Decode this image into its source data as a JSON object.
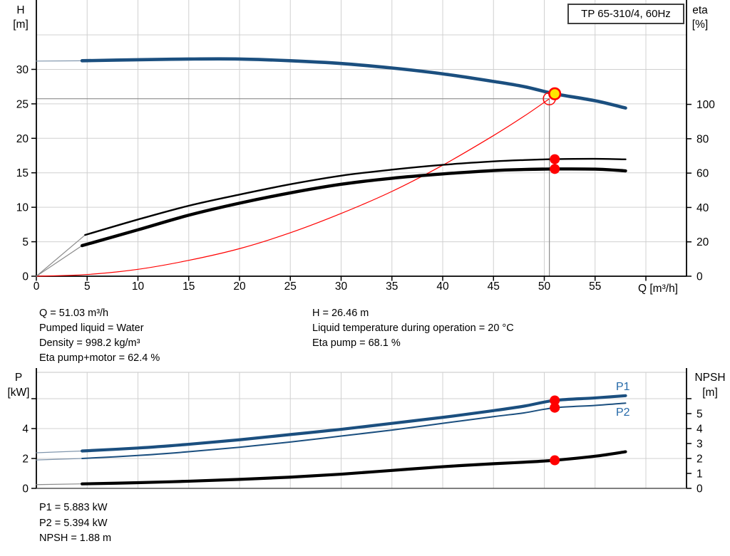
{
  "pump_model": "TP 65-310/4, 60Hz",
  "readout_top_left": [
    "Q = 51.03 m³/h",
    "Pumped liquid = Water",
    "Density = 998.2 kg/m³",
    "Eta pump+motor = 62.4 %"
  ],
  "readout_top_right": [
    "H = 26.46 m",
    "Liquid temperature during operation = 20 °C",
    "Eta pump = 68.1 %"
  ],
  "readout_bottom": [
    "P1 = 5.883 kW",
    "P2 = 5.394 kW",
    "NPSH = 1.88 m"
  ],
  "colors": {
    "curve_blue": "#1B4F7F",
    "blue_lead": "#8096AD",
    "label_blue": "#2569A8",
    "curve_black": "#000000",
    "lead_gray": "#8A8A8A",
    "red": "#FF0000",
    "yellow": "#FFE600",
    "grid": "#D0D0D0",
    "axis": "#000000",
    "duty_line": "#8C8C8C"
  },
  "chart_data": [
    {
      "type": "line",
      "title": "Pump head and efficiency vs flow",
      "x_axis": {
        "label": "Q [m³/h]",
        "min": 0,
        "max": 64,
        "ticks": [
          0,
          5,
          10,
          15,
          20,
          25,
          30,
          35,
          40,
          45,
          50,
          55,
          60
        ],
        "tick_labels": [
          "0",
          "5",
          "10",
          "15",
          "20",
          "25",
          "30",
          "35",
          "40",
          "45",
          "50",
          "55",
          ""
        ]
      },
      "y_left": {
        "label_lines": [
          "H",
          "[m]"
        ],
        "min": 0,
        "max": 40,
        "ticks": [
          0,
          5,
          10,
          15,
          20,
          25,
          30
        ],
        "grid_values": [
          5,
          10,
          15,
          20,
          25,
          30,
          35
        ]
      },
      "y_right": {
        "label_lines": [
          "eta",
          "[%]"
        ],
        "min": 0,
        "max": 100,
        "ticks": [
          0,
          20,
          40,
          60,
          80,
          100
        ]
      },
      "series": [
        {
          "id": "system-curve",
          "name": "System curve",
          "axis": "left",
          "color": "red",
          "width": 1.2,
          "points": [
            [
              0,
              0
            ],
            [
              5,
              0.25
            ],
            [
              10,
              1.0
            ],
            [
              15,
              2.3
            ],
            [
              20,
              4.0
            ],
            [
              25,
              6.3
            ],
            [
              30,
              9.1
            ],
            [
              35,
              12.3
            ],
            [
              40,
              16.1
            ],
            [
              45,
              20.4
            ],
            [
              48,
              23.2
            ],
            [
              50.5,
              25.74
            ]
          ]
        },
        {
          "id": "eta-pump-curve",
          "name": "Eta pump",
          "axis": "right",
          "color": "curve_black",
          "width": 2.4,
          "lead_color": "lead_gray",
          "lead": [
            [
              0,
              0
            ],
            [
              4.8,
              24
            ]
          ],
          "points": [
            [
              4.8,
              24
            ],
            [
              10,
              33
            ],
            [
              15,
              41
            ],
            [
              20,
              47.5
            ],
            [
              25,
              53.5
            ],
            [
              30,
              58.5
            ],
            [
              35,
              62
            ],
            [
              40,
              64.8
            ],
            [
              45,
              66.8
            ],
            [
              48,
              67.6
            ],
            [
              51.03,
              68.1
            ],
            [
              55,
              68.3
            ],
            [
              58,
              68
            ]
          ]
        },
        {
          "id": "eta-pump-motor-curve",
          "name": "Eta pump+motor",
          "axis": "right",
          "color": "curve_black",
          "width": 4.4,
          "lead_color": "lead_gray",
          "lead": [
            [
              0,
              0
            ],
            [
              4.5,
              17.8
            ]
          ],
          "points": [
            [
              4.5,
              17.8
            ],
            [
              10,
              27
            ],
            [
              15,
              35.5
            ],
            [
              20,
              42.5
            ],
            [
              25,
              48.5
            ],
            [
              30,
              53.5
            ],
            [
              35,
              57
            ],
            [
              40,
              59.5
            ],
            [
              45,
              61.5
            ],
            [
              48,
              62.1
            ],
            [
              51.03,
              62.4
            ],
            [
              55,
              62.3
            ],
            [
              58,
              61.3
            ]
          ]
        },
        {
          "id": "h-curve",
          "name": "H",
          "axis": "left",
          "color": "curve_blue",
          "width": 4.6,
          "lead_color": "blue_lead",
          "lead": [
            [
              0,
              31.2
            ],
            [
              4.5,
              31.25
            ]
          ],
          "points": [
            [
              4.5,
              31.25
            ],
            [
              10,
              31.4
            ],
            [
              15,
              31.5
            ],
            [
              20,
              31.5
            ],
            [
              25,
              31.25
            ],
            [
              30,
              30.85
            ],
            [
              35,
              30.2
            ],
            [
              40,
              29.35
            ],
            [
              45,
              28.25
            ],
            [
              48,
              27.5
            ],
            [
              51.03,
              26.46
            ],
            [
              55,
              25.45
            ],
            [
              58,
              24.4
            ]
          ]
        }
      ],
      "markers": {
        "requested_duty_point": {
          "q": 50.5,
          "h": 25.74
        },
        "operating_point": {
          "q": 51.03,
          "h": 26.46
        },
        "eta_points": [
          {
            "q": 51.03,
            "eta": 68.1
          },
          {
            "q": 51.03,
            "eta": 62.4
          }
        ]
      }
    },
    {
      "type": "line",
      "title": "Power and NPSH vs flow",
      "x_axis": {
        "label": "",
        "min": 0,
        "max": 64,
        "ticks": [
          5,
          10,
          15,
          20,
          25,
          30,
          35,
          40,
          45,
          50,
          55,
          60
        ],
        "tick_labels": []
      },
      "y_left": {
        "label_lines": [
          "P",
          "[kW]"
        ],
        "min": 0,
        "max": 7.8,
        "ticks": [
          0,
          2,
          4,
          6
        ],
        "tick_labels": [
          "0",
          "2",
          "4",
          ""
        ],
        "grid_values": [
          2,
          4,
          6
        ]
      },
      "y_right": {
        "label_lines": [
          "NPSH",
          "[m]"
        ],
        "min": 0,
        "max": 7.8,
        "ticks": [
          0,
          1,
          2,
          3,
          4,
          5,
          6
        ],
        "tick_labels": [
          "0",
          "1",
          "2",
          "3",
          "4",
          "5",
          ""
        ]
      },
      "series": [
        {
          "id": "p1-curve",
          "name": "P1",
          "label": "P1",
          "axis": "left",
          "color": "curve_blue",
          "width": 4.2,
          "lead_color": "blue_lead",
          "lead": [
            [
              0,
              2.38
            ],
            [
              4.5,
              2.5
            ]
          ],
          "points": [
            [
              4.5,
              2.5
            ],
            [
              10,
              2.7
            ],
            [
              15,
              2.95
            ],
            [
              20,
              3.25
            ],
            [
              25,
              3.6
            ],
            [
              30,
              3.95
            ],
            [
              35,
              4.35
            ],
            [
              40,
              4.75
            ],
            [
              45,
              5.2
            ],
            [
              48,
              5.5
            ],
            [
              51.03,
              5.883
            ],
            [
              55,
              6.05
            ],
            [
              58,
              6.2
            ]
          ]
        },
        {
          "id": "p2-curve",
          "name": "P2",
          "label": "P2",
          "axis": "left",
          "color": "curve_blue",
          "width": 2.0,
          "lead_color": "blue_lead",
          "lead": [
            [
              0,
              1.9
            ],
            [
              4.5,
              2.0
            ]
          ],
          "points": [
            [
              4.5,
              2.0
            ],
            [
              10,
              2.2
            ],
            [
              15,
              2.45
            ],
            [
              20,
              2.75
            ],
            [
              25,
              3.1
            ],
            [
              30,
              3.5
            ],
            [
              35,
              3.9
            ],
            [
              40,
              4.35
            ],
            [
              45,
              4.8
            ],
            [
              48,
              5.05
            ],
            [
              51.03,
              5.394
            ],
            [
              55,
              5.55
            ],
            [
              58,
              5.7
            ]
          ]
        },
        {
          "id": "npsh-curve",
          "name": "NPSH",
          "axis": "right",
          "color": "curve_black",
          "width": 4.2,
          "lead_color": "lead_gray",
          "lead": [
            [
              0,
              0.25
            ],
            [
              4.5,
              0.3
            ]
          ],
          "points": [
            [
              4.5,
              0.3
            ],
            [
              10,
              0.38
            ],
            [
              15,
              0.48
            ],
            [
              20,
              0.6
            ],
            [
              25,
              0.75
            ],
            [
              30,
              0.95
            ],
            [
              35,
              1.2
            ],
            [
              40,
              1.45
            ],
            [
              45,
              1.65
            ],
            [
              48,
              1.75
            ],
            [
              51.03,
              1.88
            ],
            [
              55,
              2.15
            ],
            [
              58,
              2.45
            ]
          ]
        }
      ],
      "markers": {
        "points": [
          {
            "series": "p1-curve",
            "q": 51.03,
            "v": 5.883
          },
          {
            "series": "p2-curve",
            "q": 51.03,
            "v": 5.394
          },
          {
            "series": "npsh-curve",
            "q": 51.03,
            "v": 1.88
          }
        ]
      }
    }
  ]
}
